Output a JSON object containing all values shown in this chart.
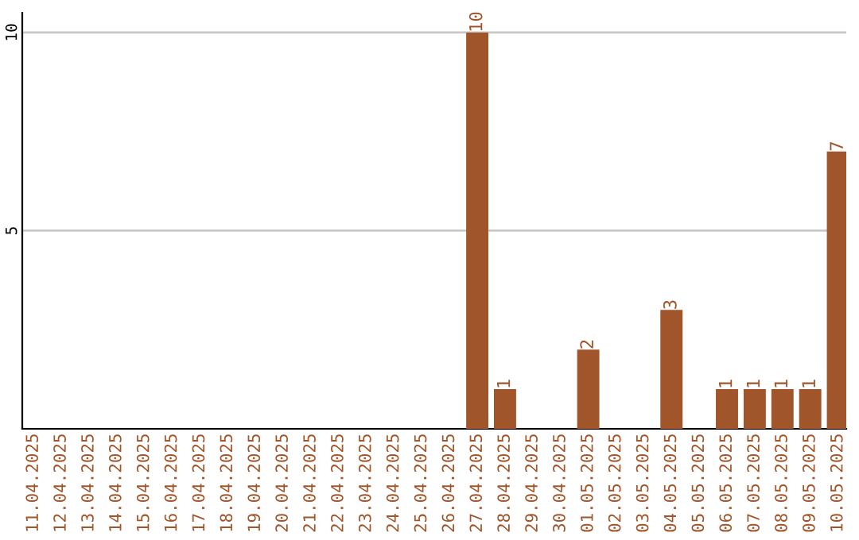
{
  "chart_data": {
    "type": "bar",
    "categories": [
      "11.04.2025",
      "12.04.2025",
      "13.04.2025",
      "14.04.2025",
      "15.04.2025",
      "16.04.2025",
      "17.04.2025",
      "18.04.2025",
      "19.04.2025",
      "20.04.2025",
      "21.04.2025",
      "22.04.2025",
      "23.04.2025",
      "24.04.2025",
      "25.04.2025",
      "26.04.2025",
      "27.04.2025",
      "28.04.2025",
      "29.04.2025",
      "30.04.2025",
      "01.05.2025",
      "02.05.2025",
      "03.05.2025",
      "04.05.2025",
      "05.05.2025",
      "06.05.2025",
      "07.05.2025",
      "08.05.2025",
      "09.05.2025",
      "10.05.2025"
    ],
    "values": [
      0,
      0,
      0,
      0,
      0,
      0,
      0,
      0,
      0,
      0,
      0,
      0,
      0,
      0,
      0,
      0,
      10,
      1,
      0,
      0,
      2,
      0,
      0,
      3,
      0,
      1,
      1,
      1,
      1,
      7
    ],
    "value_labels": [
      null,
      null,
      null,
      null,
      null,
      null,
      null,
      null,
      null,
      null,
      null,
      null,
      null,
      null,
      null,
      null,
      "10",
      "1",
      null,
      null,
      "2",
      null,
      null,
      "3",
      null,
      "1",
      "1",
      "1",
      "1",
      "7"
    ],
    "color": "#a0562a",
    "ylim": [
      0,
      10.5
    ],
    "yticks": [
      5,
      10
    ],
    "grid": "y"
  }
}
